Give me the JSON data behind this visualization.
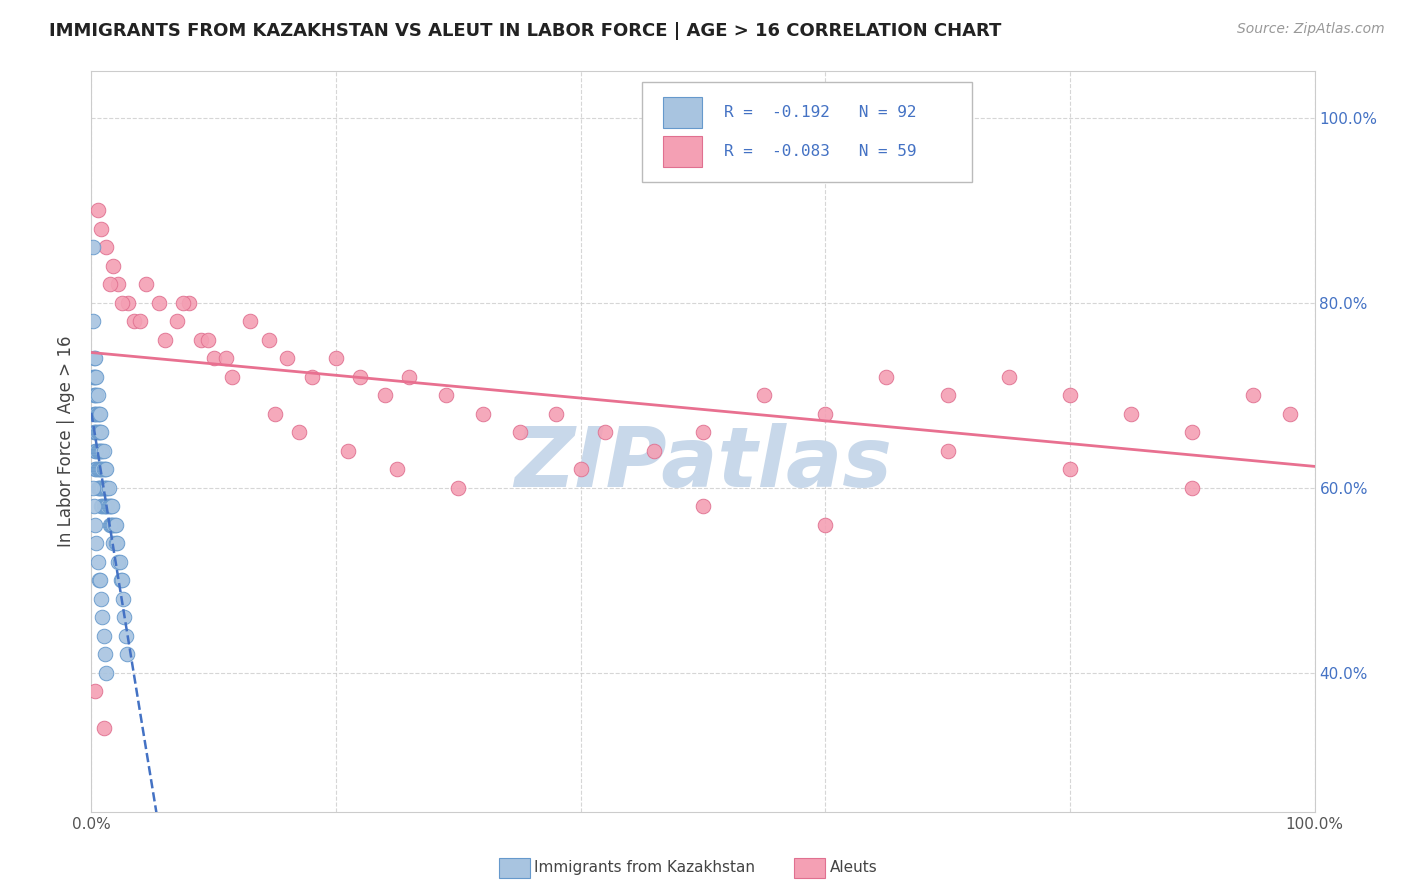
{
  "title": "IMMIGRANTS FROM KAZAKHSTAN VS ALEUT IN LABOR FORCE | AGE > 16 CORRELATION CHART",
  "source": "Source: ZipAtlas.com",
  "ylabel": "In Labor Force | Age > 16",
  "legend_line1": "R =  -0.192   N = 92",
  "legend_line2": "R =  -0.083   N = 59",
  "color_kaz": "#a8c4e0",
  "color_kaz_edge": "#6699cc",
  "color_aleut": "#f4a0b4",
  "color_aleut_edge": "#e07090",
  "color_text_blue": "#4472c4",
  "color_trendline_kaz": "#4472c4",
  "color_trendline_aleut": "#e87090",
  "color_grid": "#cccccc",
  "background": "#ffffff",
  "watermark": "ZIPatlas",
  "watermark_color": "#c8d8ea",
  "kaz_x": [
    0.001,
    0.001,
    0.001,
    0.002,
    0.002,
    0.002,
    0.002,
    0.002,
    0.003,
    0.003,
    0.003,
    0.003,
    0.003,
    0.003,
    0.003,
    0.004,
    0.004,
    0.004,
    0.004,
    0.004,
    0.004,
    0.005,
    0.005,
    0.005,
    0.005,
    0.005,
    0.005,
    0.006,
    0.006,
    0.006,
    0.006,
    0.006,
    0.007,
    0.007,
    0.007,
    0.007,
    0.007,
    0.008,
    0.008,
    0.008,
    0.008,
    0.008,
    0.009,
    0.009,
    0.009,
    0.009,
    0.01,
    0.01,
    0.01,
    0.01,
    0.011,
    0.011,
    0.011,
    0.012,
    0.012,
    0.012,
    0.013,
    0.013,
    0.014,
    0.014,
    0.015,
    0.015,
    0.016,
    0.016,
    0.017,
    0.017,
    0.018,
    0.018,
    0.019,
    0.02,
    0.02,
    0.021,
    0.022,
    0.023,
    0.024,
    0.025,
    0.026,
    0.027,
    0.028,
    0.029,
    0.001,
    0.002,
    0.003,
    0.004,
    0.005,
    0.006,
    0.007,
    0.008,
    0.009,
    0.01,
    0.011,
    0.012
  ],
  "kaz_y": [
    0.86,
    0.78,
    0.72,
    0.74,
    0.72,
    0.7,
    0.68,
    0.66,
    0.74,
    0.72,
    0.7,
    0.68,
    0.66,
    0.64,
    0.62,
    0.72,
    0.7,
    0.68,
    0.66,
    0.64,
    0.62,
    0.7,
    0.68,
    0.66,
    0.64,
    0.62,
    0.6,
    0.68,
    0.66,
    0.64,
    0.62,
    0.6,
    0.68,
    0.66,
    0.64,
    0.62,
    0.6,
    0.66,
    0.64,
    0.62,
    0.6,
    0.58,
    0.64,
    0.62,
    0.6,
    0.58,
    0.64,
    0.62,
    0.6,
    0.58,
    0.62,
    0.6,
    0.58,
    0.62,
    0.6,
    0.58,
    0.6,
    0.58,
    0.6,
    0.58,
    0.58,
    0.56,
    0.58,
    0.56,
    0.58,
    0.56,
    0.56,
    0.54,
    0.56,
    0.56,
    0.54,
    0.54,
    0.52,
    0.52,
    0.5,
    0.5,
    0.48,
    0.46,
    0.44,
    0.42,
    0.6,
    0.58,
    0.56,
    0.54,
    0.52,
    0.5,
    0.5,
    0.48,
    0.46,
    0.44,
    0.42,
    0.4
  ],
  "aleut_x": [
    0.005,
    0.012,
    0.018,
    0.022,
    0.03,
    0.035,
    0.045,
    0.055,
    0.07,
    0.08,
    0.09,
    0.1,
    0.115,
    0.13,
    0.145,
    0.16,
    0.18,
    0.2,
    0.22,
    0.24,
    0.26,
    0.29,
    0.32,
    0.35,
    0.38,
    0.42,
    0.46,
    0.5,
    0.55,
    0.6,
    0.65,
    0.7,
    0.75,
    0.8,
    0.85,
    0.9,
    0.95,
    0.98,
    0.008,
    0.015,
    0.025,
    0.04,
    0.06,
    0.075,
    0.095,
    0.11,
    0.15,
    0.17,
    0.21,
    0.25,
    0.3,
    0.4,
    0.5,
    0.6,
    0.7,
    0.8,
    0.9,
    0.003,
    0.01
  ],
  "aleut_y": [
    0.9,
    0.86,
    0.84,
    0.82,
    0.8,
    0.78,
    0.82,
    0.8,
    0.78,
    0.8,
    0.76,
    0.74,
    0.72,
    0.78,
    0.76,
    0.74,
    0.72,
    0.74,
    0.72,
    0.7,
    0.72,
    0.7,
    0.68,
    0.66,
    0.68,
    0.66,
    0.64,
    0.66,
    0.7,
    0.68,
    0.72,
    0.7,
    0.72,
    0.7,
    0.68,
    0.66,
    0.7,
    0.68,
    0.88,
    0.82,
    0.8,
    0.78,
    0.76,
    0.8,
    0.76,
    0.74,
    0.68,
    0.66,
    0.64,
    0.62,
    0.6,
    0.62,
    0.58,
    0.56,
    0.64,
    0.62,
    0.6,
    0.38,
    0.34
  ],
  "xlim": [
    0.0,
    1.0
  ],
  "ylim": [
    0.25,
    1.05
  ]
}
